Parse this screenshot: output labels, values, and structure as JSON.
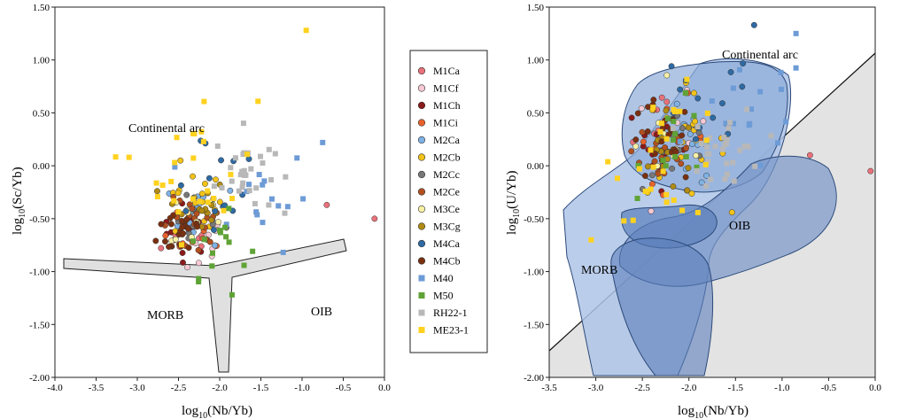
{
  "figure": {
    "left_panel": {
      "ylabel_base": "log",
      "ylabel_sub": "10",
      "ylabel_rest": "(Sc/Yb)",
      "xlabel_base": "log",
      "xlabel_sub": "10",
      "xlabel_rest": "(Nb/Yb)",
      "fields": {
        "continental_arc": "Continental arc",
        "morb": "MORB",
        "oib": "OIB"
      }
    },
    "right_panel": {
      "ylabel_base": "log",
      "ylabel_sub": "10",
      "ylabel_rest": "(U/Yb)",
      "xlabel_base": "log",
      "xlabel_sub": "10",
      "xlabel_rest": "(Nb/Yb)",
      "fields": {
        "continental_arc": "Continental arc",
        "morb": "MORB",
        "oib": "OIB"
      }
    }
  },
  "chart_data": [
    {
      "type": "scatter",
      "panel": "left",
      "xlabel": "log10(Nb/Yb)",
      "ylabel": "log10(Sc/Yb)",
      "xlim": [
        -4.0,
        0.0
      ],
      "ylim": [
        -2.0,
        1.5
      ],
      "xticks": [
        "-4.0",
        "-3.5",
        "-3.0",
        "-2.5",
        "-2.0",
        "-1.5",
        "-1.0",
        "-0.5",
        "0.0"
      ],
      "yticks": [
        "1.50",
        "1.00",
        "0.50",
        "0.00",
        "-0.50",
        "-1.00",
        "-1.50",
        "-2.00"
      ],
      "fields": [
        "Continental arc",
        "MORB",
        "OIB"
      ],
      "notable_points": [
        {
          "series": "ME23-1",
          "x": -0.95,
          "y": 1.28
        },
        {
          "series": "M1Ca",
          "x": -0.12,
          "y": -0.5
        },
        {
          "series": "M1Ca",
          "x": -0.7,
          "y": -0.37
        },
        {
          "series": "M50",
          "x": -1.85,
          "y": -1.22
        },
        {
          "series": "M40",
          "x": -0.75,
          "y": 0.22
        },
        {
          "series": "ME23-1",
          "x": -3.1,
          "y": 0.08
        }
      ]
    },
    {
      "type": "scatter",
      "panel": "right",
      "xlabel": "log10(Nb/Yb)",
      "ylabel": "log10(U/Yb)",
      "xlim": [
        -3.5,
        0.0
      ],
      "ylim": [
        -2.0,
        1.5
      ],
      "xticks": [
        "-3.5",
        "-3.0",
        "-2.5",
        "-2.0",
        "-1.5",
        "-1.0",
        "-0.5",
        "0.0"
      ],
      "yticks": [
        "1.50",
        "1.00",
        "0.50",
        "0.00",
        "-0.50",
        "-1.00",
        "-1.50",
        "-2.00"
      ],
      "fields": [
        "Continental arc",
        "MORB",
        "OIB"
      ],
      "notable_points": [
        {
          "series": "M4Ca",
          "x": -1.3,
          "y": 1.33
        },
        {
          "series": "M40",
          "x": -0.85,
          "y": 1.25
        },
        {
          "series": "M1Ca",
          "x": -0.05,
          "y": -0.05
        },
        {
          "series": "ME23-1",
          "x": -3.05,
          "y": -0.7
        },
        {
          "series": "M1Ca",
          "x": -0.7,
          "y": 0.1
        }
      ]
    }
  ],
  "legend": [
    {
      "name": "M1Ca",
      "color": "#e8717a",
      "marker": "circle"
    },
    {
      "name": "M1Cf",
      "color": "#f6c9d4",
      "marker": "circle"
    },
    {
      "name": "M1Ch",
      "color": "#8b1a1a",
      "marker": "circle"
    },
    {
      "name": "M1Ci",
      "color": "#e8622c",
      "marker": "circle"
    },
    {
      "name": "M2Ca",
      "color": "#7fb2e5",
      "marker": "circle"
    },
    {
      "name": "M2Cb",
      "color": "#f2c318",
      "marker": "circle"
    },
    {
      "name": "M2Cc",
      "color": "#777777",
      "marker": "circle"
    },
    {
      "name": "M2Ce",
      "color": "#b3501f",
      "marker": "circle"
    },
    {
      "name": "M3Ce",
      "color": "#f7f0a6",
      "marker": "circle"
    },
    {
      "name": "M3Cg",
      "color": "#b08b12",
      "marker": "circle"
    },
    {
      "name": "M4Ca",
      "color": "#2e6aa3",
      "marker": "circle"
    },
    {
      "name": "M4Cb",
      "color": "#7a3010",
      "marker": "circle"
    },
    {
      "name": "M40",
      "color": "#6d9bd6",
      "marker": "square"
    },
    {
      "name": "M50",
      "color": "#5fa336",
      "marker": "square"
    },
    {
      "name": "RH22-1",
      "color": "#b8b8b8",
      "marker": "square"
    },
    {
      "name": "ME23-1",
      "color": "#ffd21f",
      "marker": "square"
    }
  ]
}
